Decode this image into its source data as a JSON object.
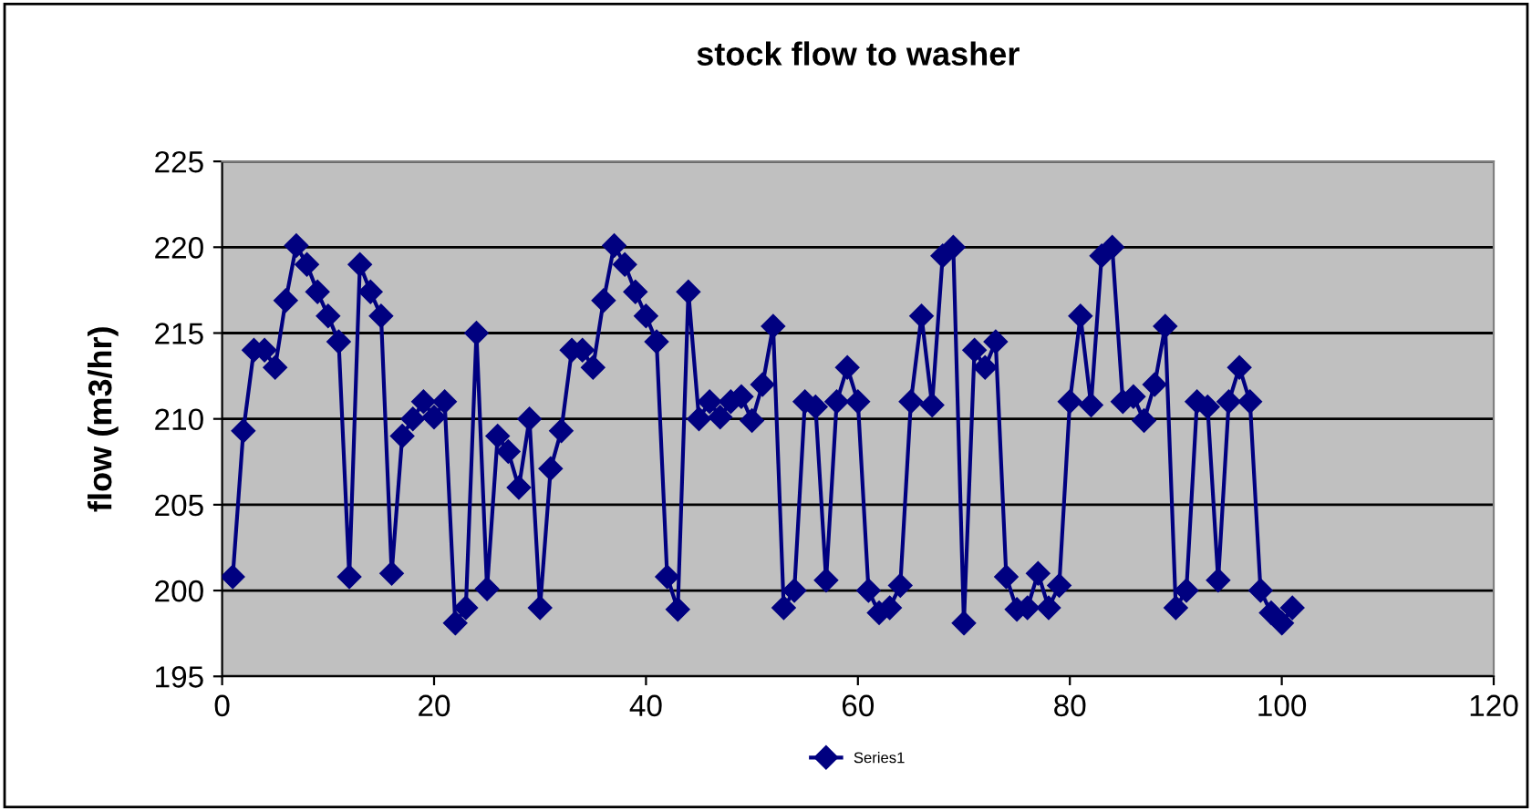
{
  "chart_data": {
    "type": "line",
    "title": "stock flow to washer",
    "ylabel": "flow (m3/hr)",
    "x": [
      1,
      2,
      3,
      4,
      5,
      6,
      7,
      8,
      9,
      10,
      11,
      12,
      13,
      14,
      15,
      16,
      17,
      18,
      19,
      20,
      21,
      22,
      23,
      24,
      25,
      26,
      27,
      28,
      29,
      30,
      31,
      32,
      33,
      34,
      35,
      36,
      37,
      38,
      39,
      40,
      41,
      42,
      43,
      44,
      45,
      46,
      47,
      48,
      49,
      50,
      51,
      52,
      53,
      54,
      55,
      56,
      57,
      58,
      59,
      60,
      61,
      62,
      63,
      64,
      65,
      66,
      67,
      68,
      69,
      70,
      71,
      72,
      73,
      74,
      75,
      76,
      77,
      78,
      79,
      80,
      81,
      82,
      83,
      84,
      85,
      86,
      87,
      88,
      89,
      90,
      91,
      92,
      93,
      94,
      95,
      96,
      97,
      98,
      99,
      100,
      101
    ],
    "series": [
      {
        "name": "Series1",
        "color": "#000080",
        "values": [
          200.8,
          209.3,
          214,
          214,
          213,
          216.9,
          220.1,
          219,
          217.4,
          216,
          214.5,
          200.8,
          219,
          217.4,
          216,
          201,
          209,
          210,
          211,
          210.1,
          211,
          198.1,
          199,
          215,
          200.1,
          209,
          208.1,
          206,
          210,
          199,
          207.1,
          209.3,
          214,
          214,
          213,
          216.9,
          220.1,
          219,
          217.4,
          216,
          214.5,
          200.8,
          198.9,
          217.4,
          210,
          211,
          210.1,
          211,
          211.3,
          209.9,
          212,
          215.4,
          199,
          200,
          211,
          210.7,
          200.6,
          211,
          213,
          211,
          200,
          198.7,
          199,
          200.3,
          211,
          216,
          210.8,
          219.5,
          220,
          198.1,
          214,
          213,
          214.5,
          200.8,
          198.9,
          199,
          201,
          199,
          200.3,
          211,
          216,
          210.8,
          219.5,
          220,
          211,
          211.3,
          209.9,
          212,
          215.4,
          199,
          200,
          211,
          210.7,
          200.6,
          211,
          213,
          211,
          200,
          198.7,
          198.1,
          199
        ]
      }
    ],
    "xlim": [
      0,
      120
    ],
    "xticks": [
      0,
      20,
      40,
      60,
      80,
      100,
      120
    ],
    "ylim": [
      195,
      225
    ],
    "yticks": [
      195,
      200,
      205,
      210,
      215,
      220,
      225
    ],
    "grid": "y",
    "legend": "bottom",
    "marker": "diamond",
    "line_style": "solid"
  }
}
